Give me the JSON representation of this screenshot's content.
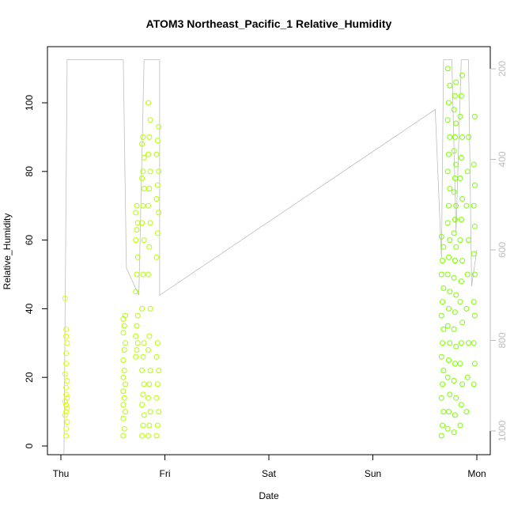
{
  "chart_data": {
    "type": "scatter",
    "title": "ATOM3 Northeast_Pacific_1 Relative_Humidity",
    "xlabel": "Date",
    "ylabel": "Relative_Humidity",
    "x_ticks": [
      "Thu",
      "Fri",
      "Sat",
      "Sun",
      "Mon"
    ],
    "y_ticks": [
      0,
      20,
      40,
      60,
      80,
      100
    ],
    "ylim": [
      -2.5,
      116
    ],
    "right_axis": {
      "label": "",
      "ticks": [
        200,
        400,
        600,
        800,
        1000
      ],
      "range_top": 180,
      "range_bottom": 1050,
      "reversed": true,
      "color": "#bdbdbd"
    },
    "grid": false,
    "legend": "none",
    "colors": {
      "early": "#dcff00",
      "mid": "#b4ff00",
      "late": "#7cff00",
      "line": "#bdbdbd",
      "axis": "#000000"
    },
    "series": [
      {
        "points": [
          [
            0.05,
            3
          ],
          [
            0.05,
            5
          ],
          [
            0.06,
            7
          ],
          [
            0.04,
            9
          ],
          [
            0.05,
            10
          ],
          [
            0.06,
            11
          ],
          [
            0.05,
            12
          ],
          [
            0.04,
            13
          ],
          [
            0.06,
            14
          ],
          [
            0.05,
            15
          ],
          [
            0.05,
            17
          ],
          [
            0.06,
            19
          ],
          [
            0.04,
            21
          ],
          [
            0.05,
            24
          ],
          [
            0.05,
            27
          ],
          [
            0.06,
            30
          ],
          [
            0.05,
            32
          ],
          [
            0.05,
            34
          ],
          [
            0.04,
            43
          ],
          [
            0.6,
            3
          ],
          [
            0.61,
            5
          ],
          [
            0.6,
            8
          ],
          [
            0.62,
            10
          ],
          [
            0.6,
            12
          ],
          [
            0.61,
            14
          ],
          [
            0.6,
            16
          ],
          [
            0.62,
            18
          ],
          [
            0.6,
            20
          ],
          [
            0.61,
            22
          ],
          [
            0.6,
            25
          ],
          [
            0.61,
            28
          ],
          [
            0.62,
            30
          ],
          [
            0.6,
            33
          ],
          [
            0.61,
            35
          ],
          [
            0.6,
            37
          ],
          [
            0.62,
            38
          ],
          [
            0.72,
            26
          ],
          [
            0.73,
            28
          ],
          [
            0.74,
            30
          ],
          [
            0.72,
            32
          ],
          [
            0.73,
            35
          ],
          [
            0.74,
            38
          ],
          [
            0.72,
            45
          ],
          [
            0.73,
            50
          ],
          [
            0.74,
            55
          ],
          [
            0.72,
            60
          ],
          [
            0.73,
            63
          ],
          [
            0.74,
            65
          ],
          [
            0.72,
            68
          ],
          [
            0.73,
            70
          ],
          [
            0.78,
            3
          ],
          [
            0.79,
            6
          ],
          [
            0.8,
            9
          ],
          [
            0.78,
            12
          ],
          [
            0.79,
            15
          ],
          [
            0.8,
            18
          ],
          [
            0.78,
            22
          ],
          [
            0.79,
            26
          ],
          [
            0.8,
            30
          ],
          [
            0.78,
            40
          ],
          [
            0.79,
            50
          ],
          [
            0.8,
            60
          ],
          [
            0.78,
            65
          ],
          [
            0.79,
            70
          ],
          [
            0.8,
            75
          ],
          [
            0.78,
            78
          ],
          [
            0.79,
            80
          ],
          [
            0.8,
            84
          ],
          [
            0.78,
            88
          ],
          [
            0.79,
            90
          ],
          [
            0.84,
            3
          ],
          [
            0.85,
            6
          ],
          [
            0.86,
            10
          ],
          [
            0.84,
            14
          ],
          [
            0.85,
            18
          ],
          [
            0.86,
            22
          ],
          [
            0.84,
            28
          ],
          [
            0.85,
            32
          ],
          [
            0.86,
            40
          ],
          [
            0.84,
            50
          ],
          [
            0.85,
            58
          ],
          [
            0.86,
            65
          ],
          [
            0.84,
            70
          ],
          [
            0.85,
            75
          ],
          [
            0.86,
            80
          ],
          [
            0.84,
            85
          ],
          [
            0.85,
            90
          ],
          [
            0.86,
            95
          ],
          [
            0.84,
            100
          ],
          [
            0.92,
            3
          ],
          [
            0.93,
            6
          ],
          [
            0.94,
            10
          ],
          [
            0.92,
            14
          ],
          [
            0.93,
            18
          ],
          [
            0.94,
            22
          ],
          [
            0.92,
            26
          ],
          [
            0.93,
            30
          ],
          [
            0.92,
            55
          ],
          [
            0.93,
            62
          ],
          [
            0.94,
            68
          ],
          [
            0.92,
            72
          ],
          [
            0.93,
            76
          ],
          [
            0.94,
            80
          ],
          [
            0.92,
            85
          ],
          [
            0.93,
            89
          ],
          [
            0.94,
            93
          ]
        ]
      },
      {
        "points": [
          [
            3.66,
            3
          ],
          [
            3.67,
            6
          ],
          [
            3.68,
            10
          ],
          [
            3.66,
            14
          ],
          [
            3.67,
            18
          ],
          [
            3.68,
            22
          ],
          [
            3.66,
            26
          ],
          [
            3.67,
            30
          ],
          [
            3.68,
            34
          ],
          [
            3.66,
            38
          ],
          [
            3.67,
            42
          ],
          [
            3.68,
            46
          ],
          [
            3.66,
            50
          ],
          [
            3.67,
            54
          ],
          [
            3.68,
            58
          ],
          [
            3.66,
            61
          ],
          [
            3.72,
            5
          ],
          [
            3.73,
            10
          ],
          [
            3.74,
            15
          ],
          [
            3.72,
            20
          ],
          [
            3.73,
            25
          ],
          [
            3.74,
            30
          ],
          [
            3.72,
            35
          ],
          [
            3.73,
            40
          ],
          [
            3.74,
            45
          ],
          [
            3.72,
            50
          ],
          [
            3.73,
            55
          ],
          [
            3.74,
            60
          ],
          [
            3.72,
            65
          ],
          [
            3.73,
            70
          ],
          [
            3.74,
            75
          ],
          [
            3.72,
            80
          ],
          [
            3.73,
            85
          ],
          [
            3.74,
            90
          ],
          [
            3.72,
            95
          ],
          [
            3.73,
            100
          ],
          [
            3.74,
            105
          ],
          [
            3.72,
            110
          ],
          [
            3.78,
            4
          ],
          [
            3.79,
            9
          ],
          [
            3.8,
            14
          ],
          [
            3.78,
            19
          ],
          [
            3.79,
            24
          ],
          [
            3.8,
            29
          ],
          [
            3.78,
            34
          ],
          [
            3.79,
            39
          ],
          [
            3.8,
            44
          ],
          [
            3.78,
            49
          ],
          [
            3.79,
            54
          ],
          [
            3.8,
            58
          ],
          [
            3.78,
            62
          ],
          [
            3.79,
            66
          ],
          [
            3.8,
            70
          ],
          [
            3.78,
            74
          ],
          [
            3.79,
            78
          ],
          [
            3.8,
            82
          ],
          [
            3.78,
            86
          ],
          [
            3.79,
            90
          ],
          [
            3.8,
            94
          ],
          [
            3.78,
            98
          ],
          [
            3.79,
            102
          ],
          [
            3.8,
            106
          ],
          [
            3.84,
            6
          ],
          [
            3.85,
            12
          ],
          [
            3.86,
            18
          ],
          [
            3.84,
            24
          ],
          [
            3.85,
            30
          ],
          [
            3.86,
            36
          ],
          [
            3.84,
            42
          ],
          [
            3.85,
            48
          ],
          [
            3.86,
            54
          ],
          [
            3.84,
            60
          ],
          [
            3.85,
            66
          ],
          [
            3.86,
            72
          ],
          [
            3.84,
            78
          ],
          [
            3.85,
            84
          ],
          [
            3.86,
            90
          ],
          [
            3.84,
            96
          ],
          [
            3.85,
            102
          ],
          [
            3.86,
            108
          ],
          [
            3.9,
            10
          ],
          [
            3.91,
            20
          ],
          [
            3.92,
            30
          ],
          [
            3.9,
            40
          ],
          [
            3.91,
            50
          ],
          [
            3.92,
            60
          ],
          [
            3.9,
            70
          ],
          [
            3.91,
            80
          ],
          [
            3.92,
            90
          ],
          [
            3.97,
            18
          ],
          [
            3.98,
            24
          ],
          [
            3.97,
            30
          ],
          [
            3.98,
            38
          ],
          [
            3.97,
            42
          ],
          [
            3.98,
            50
          ],
          [
            3.97,
            56
          ],
          [
            3.98,
            64
          ],
          [
            3.97,
            70
          ],
          [
            3.98,
            76
          ],
          [
            3.97,
            82
          ],
          [
            3.98,
            96
          ]
        ]
      }
    ],
    "pressure_line": [
      [
        0.03,
        1050
      ],
      [
        0.06,
        180
      ],
      [
        0.6,
        180
      ],
      [
        0.63,
        640
      ],
      [
        0.75,
        700
      ],
      [
        0.8,
        180
      ],
      [
        0.95,
        180
      ],
      [
        0.95,
        700
      ],
      [
        3.6,
        290
      ],
      [
        3.66,
        620
      ],
      [
        3.68,
        180
      ],
      [
        3.76,
        180
      ],
      [
        3.8,
        560
      ],
      [
        3.85,
        180
      ],
      [
        3.92,
        180
      ],
      [
        3.95,
        680
      ],
      [
        4.0,
        600
      ]
    ]
  }
}
